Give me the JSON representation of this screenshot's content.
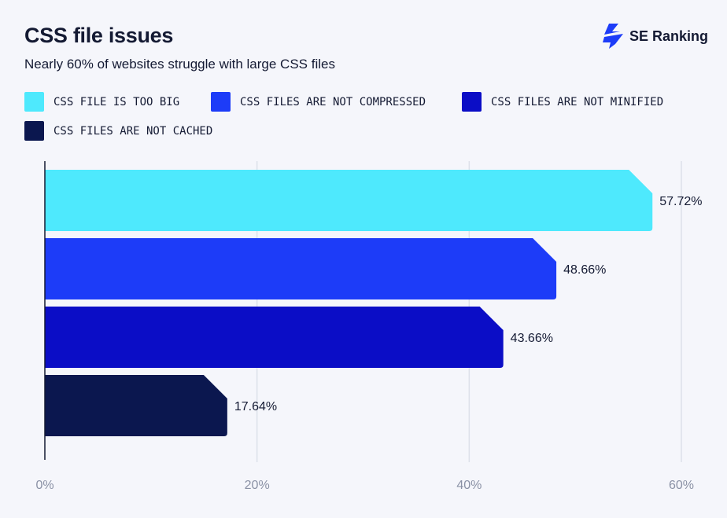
{
  "header": {
    "title": "CSS file issues",
    "subtitle": "Nearly 60% of websites struggle with large CSS files",
    "brand": "SE Ranking"
  },
  "chart_data": {
    "type": "bar",
    "orientation": "horizontal",
    "categories": [
      "CSS FILE IS TOO BIG",
      "CSS FILES ARE NOT COMPRESSED",
      "CSS FILES ARE NOT MINIFIED",
      "CSS FILES ARE NOT CACHED"
    ],
    "values": [
      57.72,
      48.66,
      43.66,
      17.64
    ],
    "data_labels": [
      "57.72%",
      "48.66%",
      "43.66%",
      "17.64%"
    ],
    "colors": [
      "#4ee9fd",
      "#1d3cf8",
      "#0b0dc6",
      "#0b174f"
    ],
    "xlim": [
      0,
      60
    ],
    "x_ticks": [
      0,
      20,
      40,
      60
    ],
    "x_tick_labels": [
      "0%",
      "20%",
      "40%",
      "60%"
    ],
    "grid": true,
    "legend_placement": "top"
  }
}
